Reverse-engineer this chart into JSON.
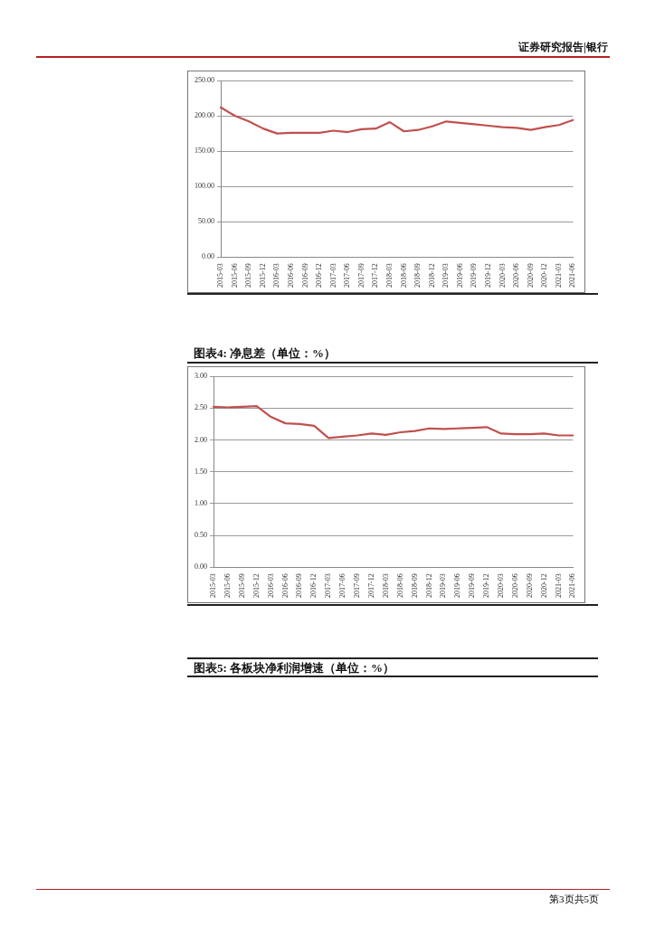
{
  "chart_data": [
    {
      "type": "line",
      "annotations": [
        "证券研究报告|银行"
      ],
      "categories": [
        "2015-03",
        "2015-06",
        "2015-09",
        "2015-12",
        "2016-03",
        "2016-06",
        "2016-09",
        "2016-12",
        "2017-03",
        "2017-06",
        "2017-09",
        "2017-12",
        "2018-03",
        "2018-06",
        "2018-09",
        "2018-12",
        "2019-03",
        "2019-06",
        "2019-09",
        "2019-12",
        "2020-03",
        "2020-06",
        "2020-09",
        "2020-12",
        "2021-03",
        "2021-06"
      ],
      "series": [
        {
          "color": "#c0504d",
          "values": [
            212,
            200,
            192,
            182,
            175,
            176,
            176,
            176,
            179,
            177,
            181,
            182,
            191,
            178,
            180,
            185,
            192,
            190,
            188,
            186,
            184,
            183,
            180,
            184,
            187,
            194
          ]
        }
      ],
      "ylim": [
        0,
        250
      ],
      "yticks": [
        {
          "value": 0,
          "label": "0.00"
        },
        {
          "value": 50,
          "label": "50.00"
        },
        {
          "value": 100,
          "label": "100.00"
        },
        {
          "value": 150,
          "label": "150.00"
        },
        {
          "value": 200,
          "label": "200.00"
        },
        {
          "value": 250,
          "label": "250.00"
        }
      ],
      "grid": "y",
      "legend": false,
      "marker": "none",
      "line_style": "solid"
    },
    {
      "type": "line",
      "title": "图表4:  净息差（单位：%）",
      "annotations": [
        "图表5:  各板块净利润增速（单位：%）",
        "第3页共5页"
      ],
      "categories": [
        "2015-03",
        "2015-06",
        "2015-09",
        "2015-12",
        "2016-03",
        "2016-06",
        "2016-09",
        "2016-12",
        "2017-03",
        "2017-06",
        "2017-09",
        "2017-12",
        "2018-03",
        "2018-06",
        "2018-09",
        "2018-12",
        "2019-03",
        "2019-06",
        "2019-09",
        "2019-12",
        "2020-03",
        "2020-06",
        "2020-09",
        "2020-12",
        "2021-03",
        "2021-06"
      ],
      "series": [
        {
          "color": "#c0504d",
          "values": [
            2.52,
            2.51,
            2.52,
            2.53,
            2.36,
            2.26,
            2.25,
            2.22,
            2.03,
            2.05,
            2.07,
            2.1,
            2.08,
            2.12,
            2.14,
            2.18,
            2.17,
            2.18,
            2.19,
            2.2,
            2.1,
            2.09,
            2.09,
            2.1,
            2.07,
            2.07
          ]
        }
      ],
      "ylim": [
        0,
        3
      ],
      "yticks": [
        {
          "value": 0,
          "label": "0.00"
        },
        {
          "value": 0.5,
          "label": "0.50"
        },
        {
          "value": 1,
          "label": "1.00"
        },
        {
          "value": 1.5,
          "label": "1.50"
        },
        {
          "value": 2,
          "label": "2.00"
        },
        {
          "value": 2.5,
          "label": "2.50"
        },
        {
          "value": 3,
          "label": "3.00"
        }
      ],
      "grid": "y",
      "legend": false,
      "marker": "none",
      "line_style": "solid"
    }
  ]
}
